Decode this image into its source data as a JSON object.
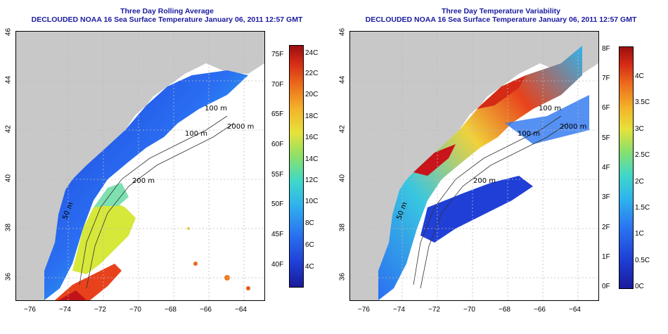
{
  "panels": [
    {
      "title1": "Three Day Rolling Average",
      "title2": "DECLOUDED NOAA 16 Sea Surface Temperature January 06, 2011 12:57 GMT",
      "colorbar_f": [
        "40F",
        "45F",
        "50F",
        "55F",
        "60F",
        "65F",
        "70F",
        "75F"
      ],
      "colorbar_c": [
        "4C",
        "6C",
        "8C",
        "10C",
        "12C",
        "14C",
        "16C",
        "18C",
        "20C",
        "22C",
        "24C"
      ],
      "contour_labels": [
        "100 m",
        "100 m",
        "2000 m",
        "200 m",
        "200 m",
        "50 m",
        "200"
      ]
    },
    {
      "title1": "Three Day Temperature Variability",
      "title2": "DECLOUDED NOAA 16 Sea Surface Temperature January 06, 2011 12:57 GMT",
      "colorbar_f": [
        "0F",
        "1F",
        "2F",
        "3F",
        "4F",
        "5F",
        "6F",
        "7F",
        "8F"
      ],
      "colorbar_c": [
        "0C",
        "0.5C",
        "1C",
        "1.5C",
        "2C",
        "2.5C",
        "3C",
        "3.5C",
        "4C"
      ],
      "contour_labels": [
        "100 m",
        "100 m",
        "2000 m",
        "200 m",
        "50 m"
      ]
    }
  ],
  "lon_ticks": [
    "−76",
    "−74",
    "−72",
    "−70",
    "−68",
    "−66",
    "−64"
  ],
  "lat_ticks": [
    "36",
    "38",
    "40",
    "42",
    "44",
    "46"
  ],
  "colors": {
    "title": "#1a1aa0",
    "land": "#c8c8c8",
    "grid": "#bbbbbb"
  }
}
